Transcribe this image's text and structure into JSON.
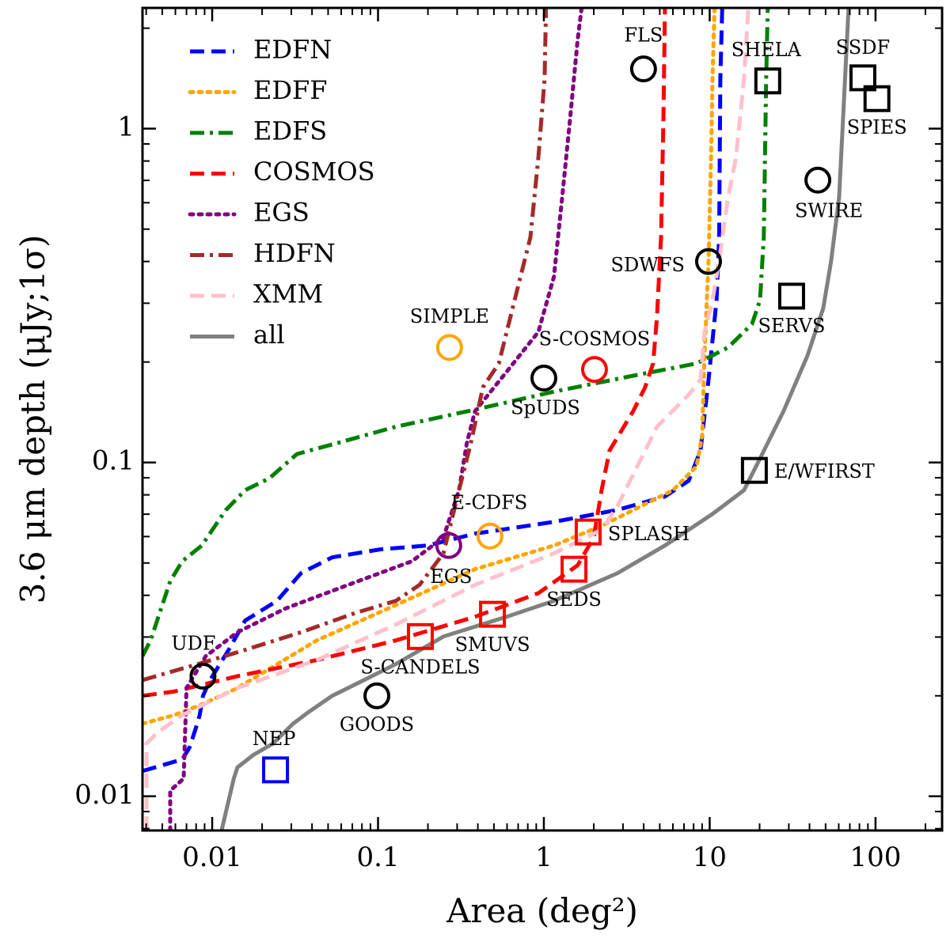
{
  "chart_data": {
    "type": "line",
    "x_label": "Area (deg²)",
    "y_label": "3.6 μm depth (μJy;1σ)",
    "xscale": "log",
    "yscale": "log",
    "xlim": [
      0.0038,
      252
    ],
    "ylim": [
      0.0079,
      2.3
    ],
    "xticks": [
      0.01,
      0.1,
      1,
      10,
      100
    ],
    "yticks": [
      0.01,
      0.1,
      1
    ],
    "legend": "upper left",
    "series": [
      {
        "name": "EDFN",
        "color": "#0000ff",
        "style": "dashed",
        "x": [
          0.0038,
          0.0066,
          0.0073,
          0.008,
          0.0084,
          0.0088,
          0.0097,
          0.0127,
          0.0158,
          0.0246,
          0.0343,
          0.053,
          0.103,
          0.199,
          0.385,
          1.15,
          2.78,
          5.37,
          7.48,
          8.81,
          9.84,
          11.0,
          11.4,
          11.6,
          11.9
        ],
        "values": [
          0.0119,
          0.0129,
          0.014,
          0.0161,
          0.0175,
          0.02,
          0.0223,
          0.0277,
          0.0336,
          0.0385,
          0.0466,
          0.052,
          0.0549,
          0.0564,
          0.0612,
          0.0664,
          0.0721,
          0.0791,
          0.0882,
          0.1086,
          0.177,
          0.306,
          0.473,
          1.41,
          2.3
        ]
      },
      {
        "name": "EDFF",
        "color": "#ffa500",
        "style": "dotted",
        "x": [
          0.0038,
          0.0059,
          0.0088,
          0.0142,
          0.0427,
          0.128,
          0.385,
          1.15,
          2.23,
          6.0,
          8.34,
          9.01,
          9.31,
          9.84,
          10.2,
          10.4,
          10.7
        ],
        "values": [
          0.0165,
          0.0175,
          0.0189,
          0.0211,
          0.0293,
          0.0374,
          0.0479,
          0.0564,
          0.0646,
          0.0826,
          0.0973,
          0.121,
          0.209,
          0.402,
          0.817,
          1.41,
          2.3
        ]
      },
      {
        "name": "EDFS",
        "color": "#008000",
        "style": "dashdot",
        "x": [
          0.0038,
          0.00425,
          0.00558,
          0.0066,
          0.00867,
          0.0108,
          0.0121,
          0.0158,
          0.0221,
          0.0324,
          0.0593,
          0.128,
          0.385,
          1.15,
          3.46,
          8.34,
          12.9,
          18.0,
          20.1,
          21.2,
          21.9,
          22.4
        ],
        "values": [
          0.0263,
          0.0293,
          0.0441,
          0.0506,
          0.0564,
          0.0664,
          0.0721,
          0.0826,
          0.0897,
          0.106,
          0.115,
          0.128,
          0.144,
          0.163,
          0.182,
          0.198,
          0.221,
          0.26,
          0.306,
          0.473,
          1.41,
          2.3
        ]
      },
      {
        "name": "COSMOS",
        "color": "#ff0000",
        "style": "dashed",
        "x": [
          0.0038,
          0.0059,
          0.0142,
          0.0427,
          0.128,
          0.385,
          0.926,
          1.6,
          2.0,
          2.23,
          2.49,
          3.46,
          4.08,
          4.56,
          4.81,
          5.09,
          5.26,
          5.37
        ],
        "values": [
          0.02,
          0.0206,
          0.0229,
          0.0256,
          0.0293,
          0.0345,
          0.0406,
          0.0492,
          0.0596,
          0.0826,
          0.1086,
          0.1426,
          0.168,
          0.198,
          0.274,
          0.473,
          1.07,
          2.3
        ]
      },
      {
        "name": "EGS",
        "color": "#800080",
        "style": "dotted",
        "x": [
          0.00558,
          0.00558,
          0.00673,
          0.007,
          0.00916,
          0.0142,
          0.0275,
          0.0662,
          0.16,
          0.248,
          0.308,
          0.344,
          0.385,
          0.597,
          0.926,
          1.15,
          1.29,
          1.44,
          1.6,
          1.69
        ],
        "values": [
          0.0079,
          0.0104,
          0.0113,
          0.0211,
          0.0263,
          0.031,
          0.0365,
          0.043,
          0.0506,
          0.0596,
          0.0826,
          0.115,
          0.1426,
          0.187,
          0.246,
          0.36,
          0.622,
          1.07,
          1.85,
          2.3
        ]
      },
      {
        "name": "HDFN",
        "color": "#a52a2a",
        "style": "dashdot",
        "x": [
          0.0038,
          0.0082,
          0.0142,
          0.0343,
          0.0739,
          0.128,
          0.178,
          0.248,
          0.308,
          0.364,
          0.429,
          0.535,
          0.666,
          0.83,
          0.926,
          1.01,
          1.03
        ],
        "values": [
          0.0223,
          0.0249,
          0.027,
          0.031,
          0.0355,
          0.0385,
          0.043,
          0.0534,
          0.0826,
          0.115,
          0.168,
          0.198,
          0.306,
          0.473,
          0.817,
          1.41,
          2.3
        ]
      },
      {
        "name": "XMM",
        "color": "#ffc0cb",
        "style": "dashed",
        "x": [
          0.00402,
          0.00402,
          0.00473,
          0.0066,
          0.0142,
          0.0427,
          0.128,
          0.385,
          1.15,
          2.23,
          2.78,
          3.46,
          4.81,
          7.48,
          8.81,
          9.31,
          10.4,
          11.6,
          12.9,
          14.4,
          16.1,
          17.1
        ],
        "values": [
          0.0079,
          0.0144,
          0.0156,
          0.0175,
          0.0211,
          0.0256,
          0.0327,
          0.043,
          0.0534,
          0.0629,
          0.0741,
          0.0921,
          0.128,
          0.1596,
          0.177,
          0.246,
          0.306,
          0.425,
          0.622,
          0.817,
          1.41,
          2.3
        ]
      },
      {
        "name": "all",
        "color": "#808080",
        "style": "solid",
        "x": [
          0.0114,
          0.0135,
          0.0142,
          0.0177,
          0.0233,
          0.0307,
          0.0382,
          0.053,
          0.0825,
          0.128,
          0.248,
          0.597,
          1.15,
          2.78,
          5.37,
          10.4,
          16.1,
          20.1,
          27.9,
          38.9,
          48.4,
          54.0,
          60.3,
          63.7,
          67.3,
          68.8
        ],
        "values": [
          0.0079,
          0.0113,
          0.0122,
          0.0133,
          0.0144,
          0.0165,
          0.0179,
          0.02,
          0.0223,
          0.0249,
          0.0301,
          0.0345,
          0.0385,
          0.0466,
          0.0564,
          0.0701,
          0.0826,
          0.1028,
          0.1426,
          0.209,
          0.29,
          0.402,
          0.622,
          1.07,
          1.85,
          2.3
        ]
      }
    ],
    "markers": [
      {
        "label": "UDF",
        "x": 0.0088,
        "y": 0.0229,
        "shape": "circle",
        "color": "#000000"
      },
      {
        "label": "NEP",
        "x": 0.0241,
        "y": 0.012,
        "shape": "square",
        "color": "#0000ff"
      },
      {
        "label": "GOODS",
        "x": 0.0984,
        "y": 0.02,
        "shape": "circle",
        "color": "#000000"
      },
      {
        "label": "S-CANDELS",
        "x": 0.18,
        "y": 0.0301,
        "shape": "square",
        "color": "#ff0000"
      },
      {
        "label": "SMUVS",
        "x": 0.49,
        "y": 0.0351,
        "shape": "square",
        "color": "#ff0000"
      },
      {
        "label": "SEDS",
        "x": 1.52,
        "y": 0.0479,
        "shape": "square",
        "color": "#ff0000"
      },
      {
        "label": "SPLASH",
        "x": 1.85,
        "y": 0.0619,
        "shape": "square",
        "color": "#ff0000"
      },
      {
        "label": "EGS",
        "x": 0.267,
        "y": 0.0564,
        "shape": "circle",
        "color": "#800080"
      },
      {
        "label": "E-CDFS",
        "x": 0.473,
        "y": 0.0602,
        "shape": "circle",
        "color": "#ffa500"
      },
      {
        "label": "SIMPLE",
        "x": 0.27,
        "y": 0.221,
        "shape": "circle",
        "color": "#ffa500"
      },
      {
        "label": "SpUDS",
        "x": 1.0,
        "y": 0.179,
        "shape": "circle",
        "color": "#000000"
      },
      {
        "label": "S-COSMOS",
        "x": 2.02,
        "y": 0.19,
        "shape": "circle",
        "color": "#ff0000"
      },
      {
        "label": "SDWFS",
        "x": 9.84,
        "y": 0.4,
        "shape": "circle",
        "color": "#000000"
      },
      {
        "label": "FLS",
        "x": 3.99,
        "y": 1.51,
        "shape": "circle",
        "color": "#000000"
      },
      {
        "label": "SHELA",
        "x": 22.4,
        "y": 1.39,
        "shape": "square",
        "color": "#000000"
      },
      {
        "label": "SSDF",
        "x": 83.9,
        "y": 1.42,
        "shape": "square",
        "color": "#000000"
      },
      {
        "label": "SPIES",
        "x": 102,
        "y": 1.23,
        "shape": "square",
        "color": "#000000"
      },
      {
        "label": "SWIRE",
        "x": 44.9,
        "y": 0.701,
        "shape": "circle",
        "color": "#000000"
      },
      {
        "label": "SERVS",
        "x": 31.2,
        "y": 0.315,
        "shape": "square",
        "color": "#000000"
      },
      {
        "label": "E/WFIRST",
        "x": 18.6,
        "y": 0.0947,
        "shape": "square",
        "color": "#000000"
      }
    ]
  }
}
